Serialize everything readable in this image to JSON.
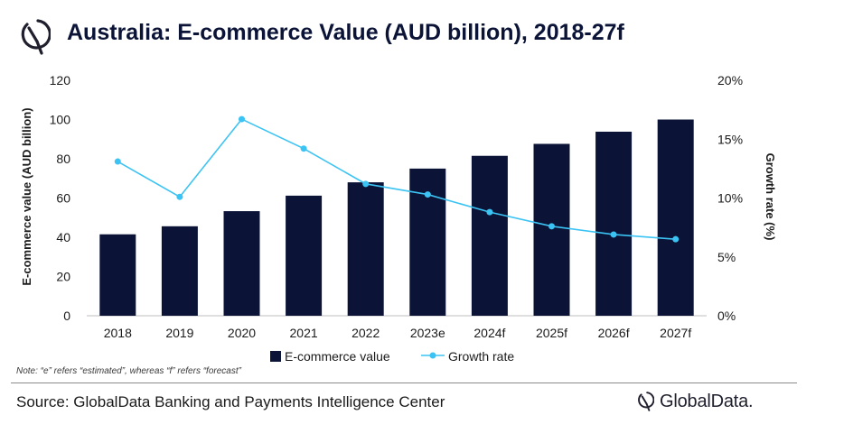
{
  "title": "Australia: E-commerce Value (AUD billion), 2018-27f",
  "note": "Note: “e” refers “estimated”, whereas “f” refers “forecast”",
  "source": "Source: GlobalData Banking and Payments Intelligence Center",
  "brand": "GlobalData.",
  "colors": {
    "bar": "#0b1437",
    "line": "#3bc3f3",
    "title": "#0b1437"
  },
  "chart_data": {
    "type": "bar+line",
    "categories": [
      "2018",
      "2019",
      "2020",
      "2021",
      "2022",
      "2023e",
      "2024f",
      "2025f",
      "2026f",
      "2027f"
    ],
    "series": [
      {
        "name": "E-commerce value",
        "type": "bar",
        "axis": "left",
        "values": [
          41.5,
          45.6,
          53.3,
          61.2,
          68.0,
          75.0,
          81.5,
          87.6,
          93.8,
          100.0
        ]
      },
      {
        "name": "Growth rate",
        "type": "line",
        "axis": "right",
        "values": [
          13.1,
          10.1,
          16.7,
          14.2,
          11.2,
          10.3,
          8.8,
          7.6,
          6.9,
          6.5
        ]
      }
    ],
    "y_left": {
      "label": "E-commerce value (AUD billion)",
      "ylim": [
        0,
        120
      ],
      "ticks": [
        "0",
        "20",
        "40",
        "60",
        "80",
        "100",
        "120"
      ]
    },
    "y_right": {
      "label": "Growth rate (%)",
      "ylim": [
        0,
        20
      ],
      "ticks": [
        "0%",
        "5%",
        "10%",
        "15%",
        "20%"
      ]
    },
    "grid": false,
    "legend": "bottom"
  }
}
